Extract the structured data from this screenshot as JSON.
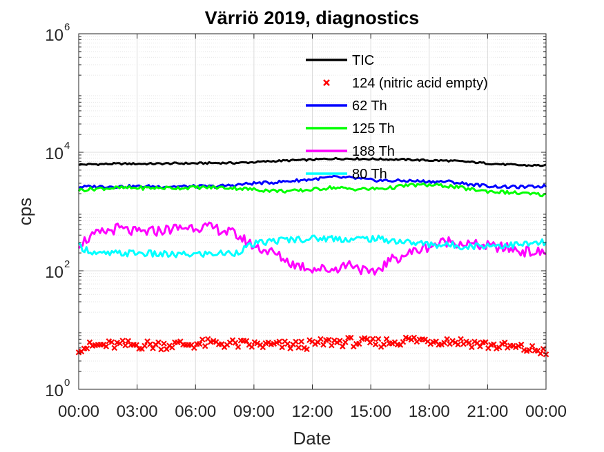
{
  "chart_data": {
    "type": "line",
    "title": "Värriö 2019, diagnostics",
    "xlabel": "Date",
    "ylabel": "cps",
    "yscale": "log",
    "ylim": [
      1,
      1000000
    ],
    "xlim_hours": [
      0,
      24
    ],
    "grid": true,
    "minor_grid": true,
    "legend_position": "top-center",
    "x_ticks": [
      {
        "label": "00:00",
        "hour": 0
      },
      {
        "label": "03:00",
        "hour": 3
      },
      {
        "label": "06:00",
        "hour": 6
      },
      {
        "label": "09:00",
        "hour": 9
      },
      {
        "label": "12:00",
        "hour": 12
      },
      {
        "label": "15:00",
        "hour": 15
      },
      {
        "label": "18:00",
        "hour": 18
      },
      {
        "label": "21:00",
        "hour": 21
      },
      {
        "label": "00:00",
        "hour": 24
      }
    ],
    "y_ticks": [
      {
        "base": "10",
        "exp": "0",
        "value": 1
      },
      {
        "base": "10",
        "exp": "2",
        "value": 100
      },
      {
        "base": "10",
        "exp": "4",
        "value": 10000
      },
      {
        "base": "10",
        "exp": "6",
        "value": 1000000
      }
    ],
    "series": [
      {
        "name": "TIC",
        "color": "#000000",
        "style": "line",
        "x": [
          0,
          1,
          2,
          3,
          4,
          5,
          6,
          7,
          8,
          9,
          10,
          11,
          12,
          13,
          14,
          15,
          16,
          17,
          18,
          19,
          20,
          21,
          22,
          23,
          24
        ],
        "y": [
          6200,
          6300,
          6400,
          6400,
          6400,
          6500,
          6500,
          6600,
          6600,
          6800,
          7100,
          7300,
          7500,
          7800,
          7800,
          7700,
          7600,
          7500,
          7300,
          7200,
          6900,
          6500,
          6200,
          6000,
          6000
        ]
      },
      {
        "name": "124 (nitric acid empty)",
        "color": "#ff0000",
        "style": "marker",
        "x": [
          0,
          1,
          2,
          3,
          4,
          5,
          6,
          7,
          8,
          9,
          10,
          11,
          12,
          13,
          14,
          15,
          16,
          17,
          18,
          19,
          20,
          21,
          22,
          23,
          24
        ],
        "y": [
          5.0,
          5.5,
          5.6,
          5.6,
          5.6,
          5.7,
          5.8,
          6.0,
          5.8,
          5.6,
          5.5,
          5.5,
          5.7,
          6.3,
          6.3,
          6.0,
          6.3,
          6.8,
          6.7,
          6.6,
          6.2,
          5.6,
          5.2,
          4.8,
          4.4
        ]
      },
      {
        "name": "62 Th",
        "color": "#0000ff",
        "style": "line",
        "x": [
          0,
          1,
          2,
          3,
          4,
          5,
          6,
          7,
          8,
          9,
          10,
          11,
          12,
          13,
          14,
          15,
          16,
          17,
          18,
          19,
          20,
          21,
          22,
          23,
          24
        ],
        "y": [
          2600,
          2650,
          2650,
          2650,
          2650,
          2650,
          2650,
          2650,
          2800,
          3000,
          3100,
          3300,
          3500,
          3800,
          3700,
          3400,
          3300,
          3300,
          3200,
          3200,
          2900,
          2700,
          2600,
          2600,
          2700
        ]
      },
      {
        "name": "125 Th",
        "color": "#00ff00",
        "style": "line",
        "x": [
          0,
          1,
          2,
          3,
          4,
          5,
          6,
          7,
          8,
          9,
          10,
          11,
          12,
          13,
          14,
          15,
          16,
          17,
          18,
          19,
          20,
          21,
          22,
          23,
          24
        ],
        "y": [
          2300,
          2450,
          2500,
          2500,
          2500,
          2500,
          2550,
          2550,
          2500,
          2350,
          2250,
          2200,
          2350,
          2550,
          2400,
          2400,
          2500,
          2800,
          2800,
          2700,
          2400,
          2200,
          2100,
          2000,
          1900
        ]
      },
      {
        "name": "188 Th",
        "color": "#ff00ff",
        "style": "line",
        "x": [
          0,
          1,
          2,
          3,
          4,
          5,
          6,
          7,
          8,
          9,
          10,
          11,
          12,
          13,
          14,
          15,
          16,
          17,
          18,
          19,
          20,
          21,
          22,
          23,
          24
        ],
        "y": [
          290,
          420,
          520,
          440,
          470,
          520,
          560,
          520,
          420,
          260,
          200,
          130,
          110,
          105,
          135,
          85,
          150,
          200,
          260,
          320,
          280,
          260,
          240,
          210,
          200
        ]
      },
      {
        "name": "80 Th",
        "color": "#00ffff",
        "style": "line",
        "x": [
          0,
          1,
          2,
          3,
          4,
          5,
          6,
          7,
          8,
          9,
          10,
          11,
          12,
          13,
          14,
          15,
          16,
          17,
          18,
          19,
          20,
          21,
          22,
          23,
          24
        ],
        "y": [
          260,
          190,
          195,
          200,
          190,
          185,
          190,
          195,
          200,
          280,
          320,
          340,
          350,
          355,
          340,
          350,
          330,
          300,
          280,
          270,
          260,
          270,
          270,
          280,
          300
        ]
      }
    ]
  }
}
